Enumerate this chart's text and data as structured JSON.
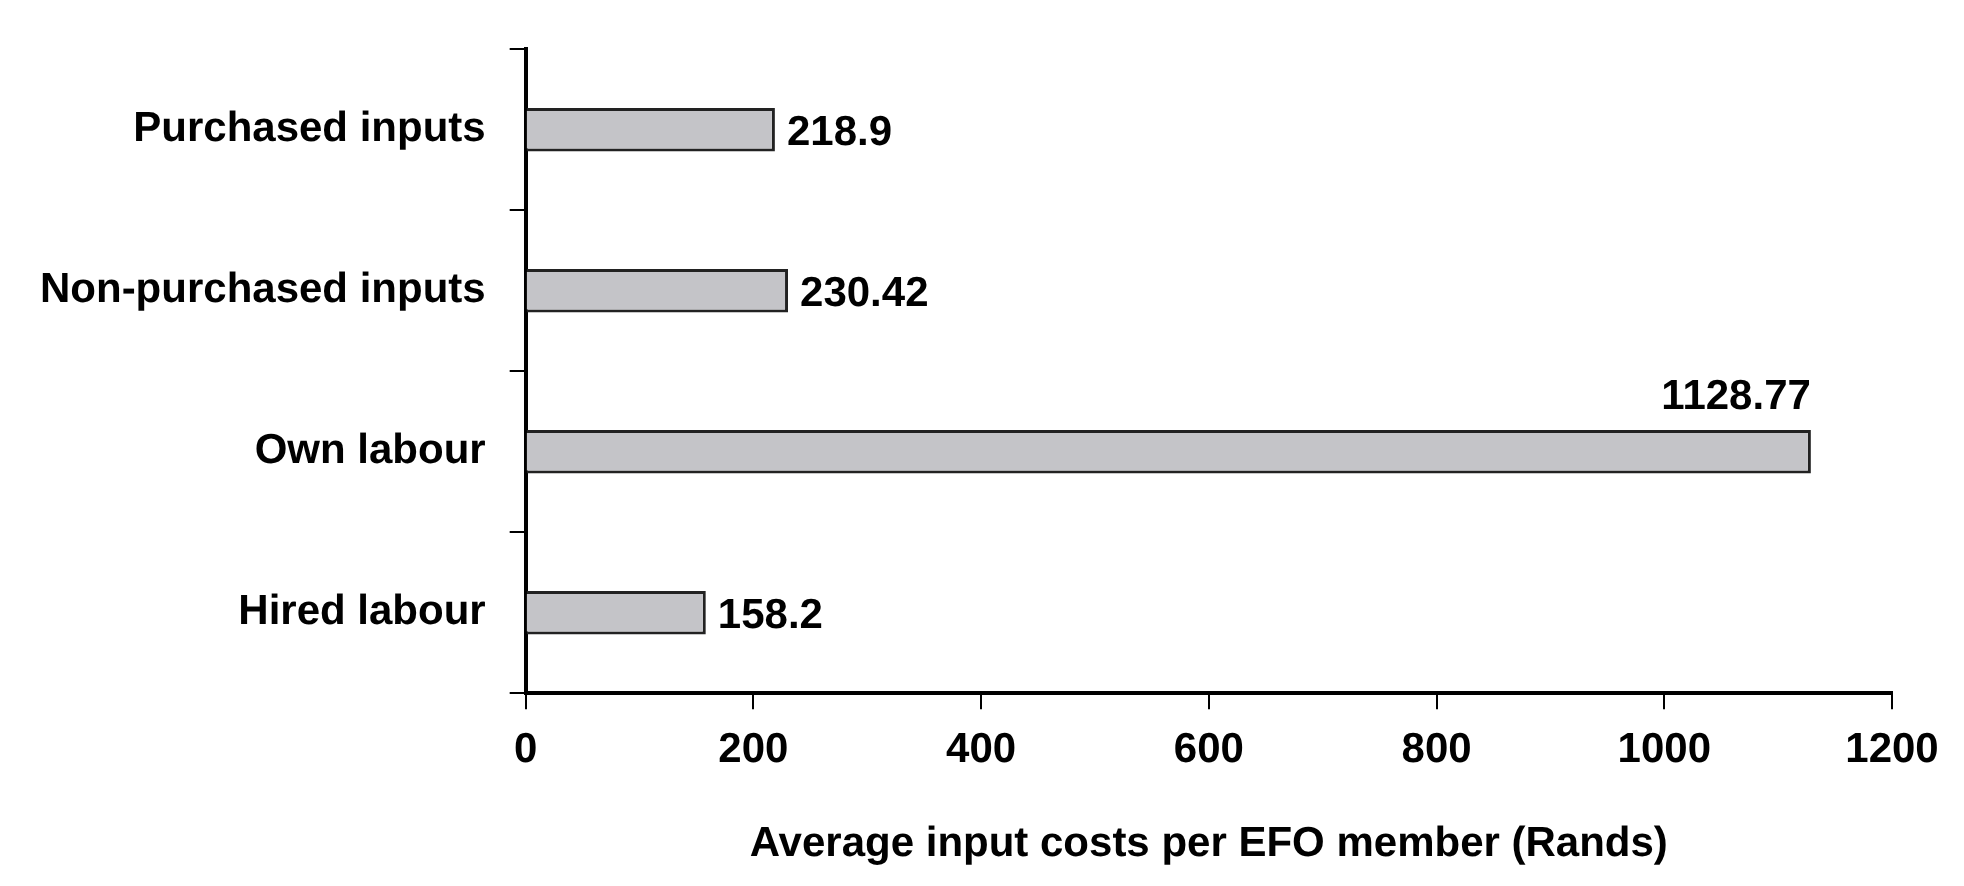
{
  "chart_data": {
    "type": "bar",
    "orientation": "horizontal",
    "xlabel": "Average input costs per EFO member (Rands)",
    "categories": [
      "Purchased inputs",
      "Non-purchased inputs",
      "Own labour",
      "Hired labour"
    ],
    "values": [
      218.9,
      230.42,
      1128.77,
      158.2
    ],
    "color": "#c4c4c8",
    "xlim": [
      0,
      1200
    ],
    "xticks": [
      0,
      200,
      400,
      600,
      800,
      1000,
      1200
    ],
    "data_labels": true,
    "grid": false,
    "legend": false
  }
}
